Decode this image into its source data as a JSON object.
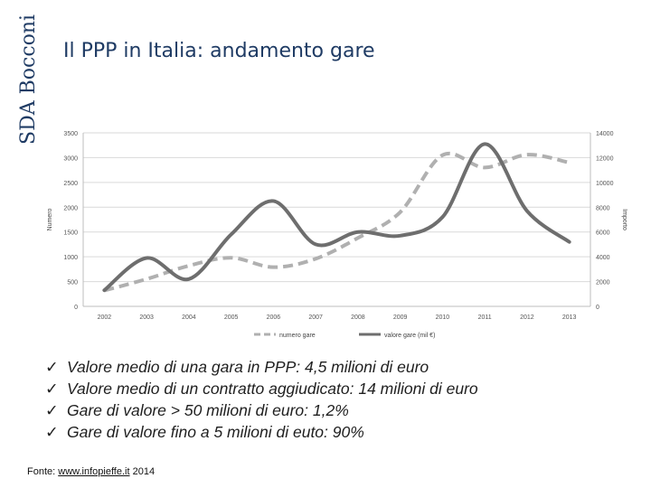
{
  "logo": {
    "text": "SDA Bocconi"
  },
  "title": "Il PPP in Italia: andamento gare",
  "chart_data": {
    "type": "line",
    "categories": [
      "2002",
      "2003",
      "2004",
      "2005",
      "2006",
      "2007",
      "2008",
      "2009",
      "2010",
      "2011",
      "2012",
      "2013"
    ],
    "y_ticks": [
      "0",
      "500",
      "1000",
      "1500",
      "2000",
      "2500",
      "3000",
      "3500"
    ],
    "y2_ticks": [
      "0",
      "2000",
      "4000",
      "6000",
      "8000",
      "10000",
      "12000",
      "14000"
    ],
    "ylabel": "Numero",
    "y2label": "Importo",
    "ylim": [
      0,
      3500
    ],
    "y2lim": [
      0,
      14000
    ],
    "grid": true,
    "legend_position": "bottom",
    "series": [
      {
        "name": "numero gare",
        "axis": "left",
        "style": "dashed",
        "color": "#b0b0b0",
        "values": [
          320,
          550,
          820,
          980,
          790,
          960,
          1380,
          1900,
          3050,
          2800,
          3060,
          2900
        ]
      },
      {
        "name": "valore gare (mil €)",
        "axis": "right",
        "style": "solid",
        "color": "#6e6e6e",
        "values": [
          1300,
          3900,
          2200,
          5800,
          8500,
          5000,
          6000,
          5700,
          7200,
          13100,
          7700,
          5200
        ]
      }
    ]
  },
  "bullets": [
    "Valore medio di una gara in PPP: 4,5 milioni di euro",
    "Valore medio di un contratto aggiudicato: 14 milioni di euro",
    "Gare di valore > 50 milioni di euro: 1,2%",
    "Gare di valore fino a 5 milioni di euto: 90%"
  ],
  "bullet_marker": "✓",
  "source": {
    "prefix": "Fonte: ",
    "link": "www.infopieffe.it",
    "suffix": " 2014"
  }
}
